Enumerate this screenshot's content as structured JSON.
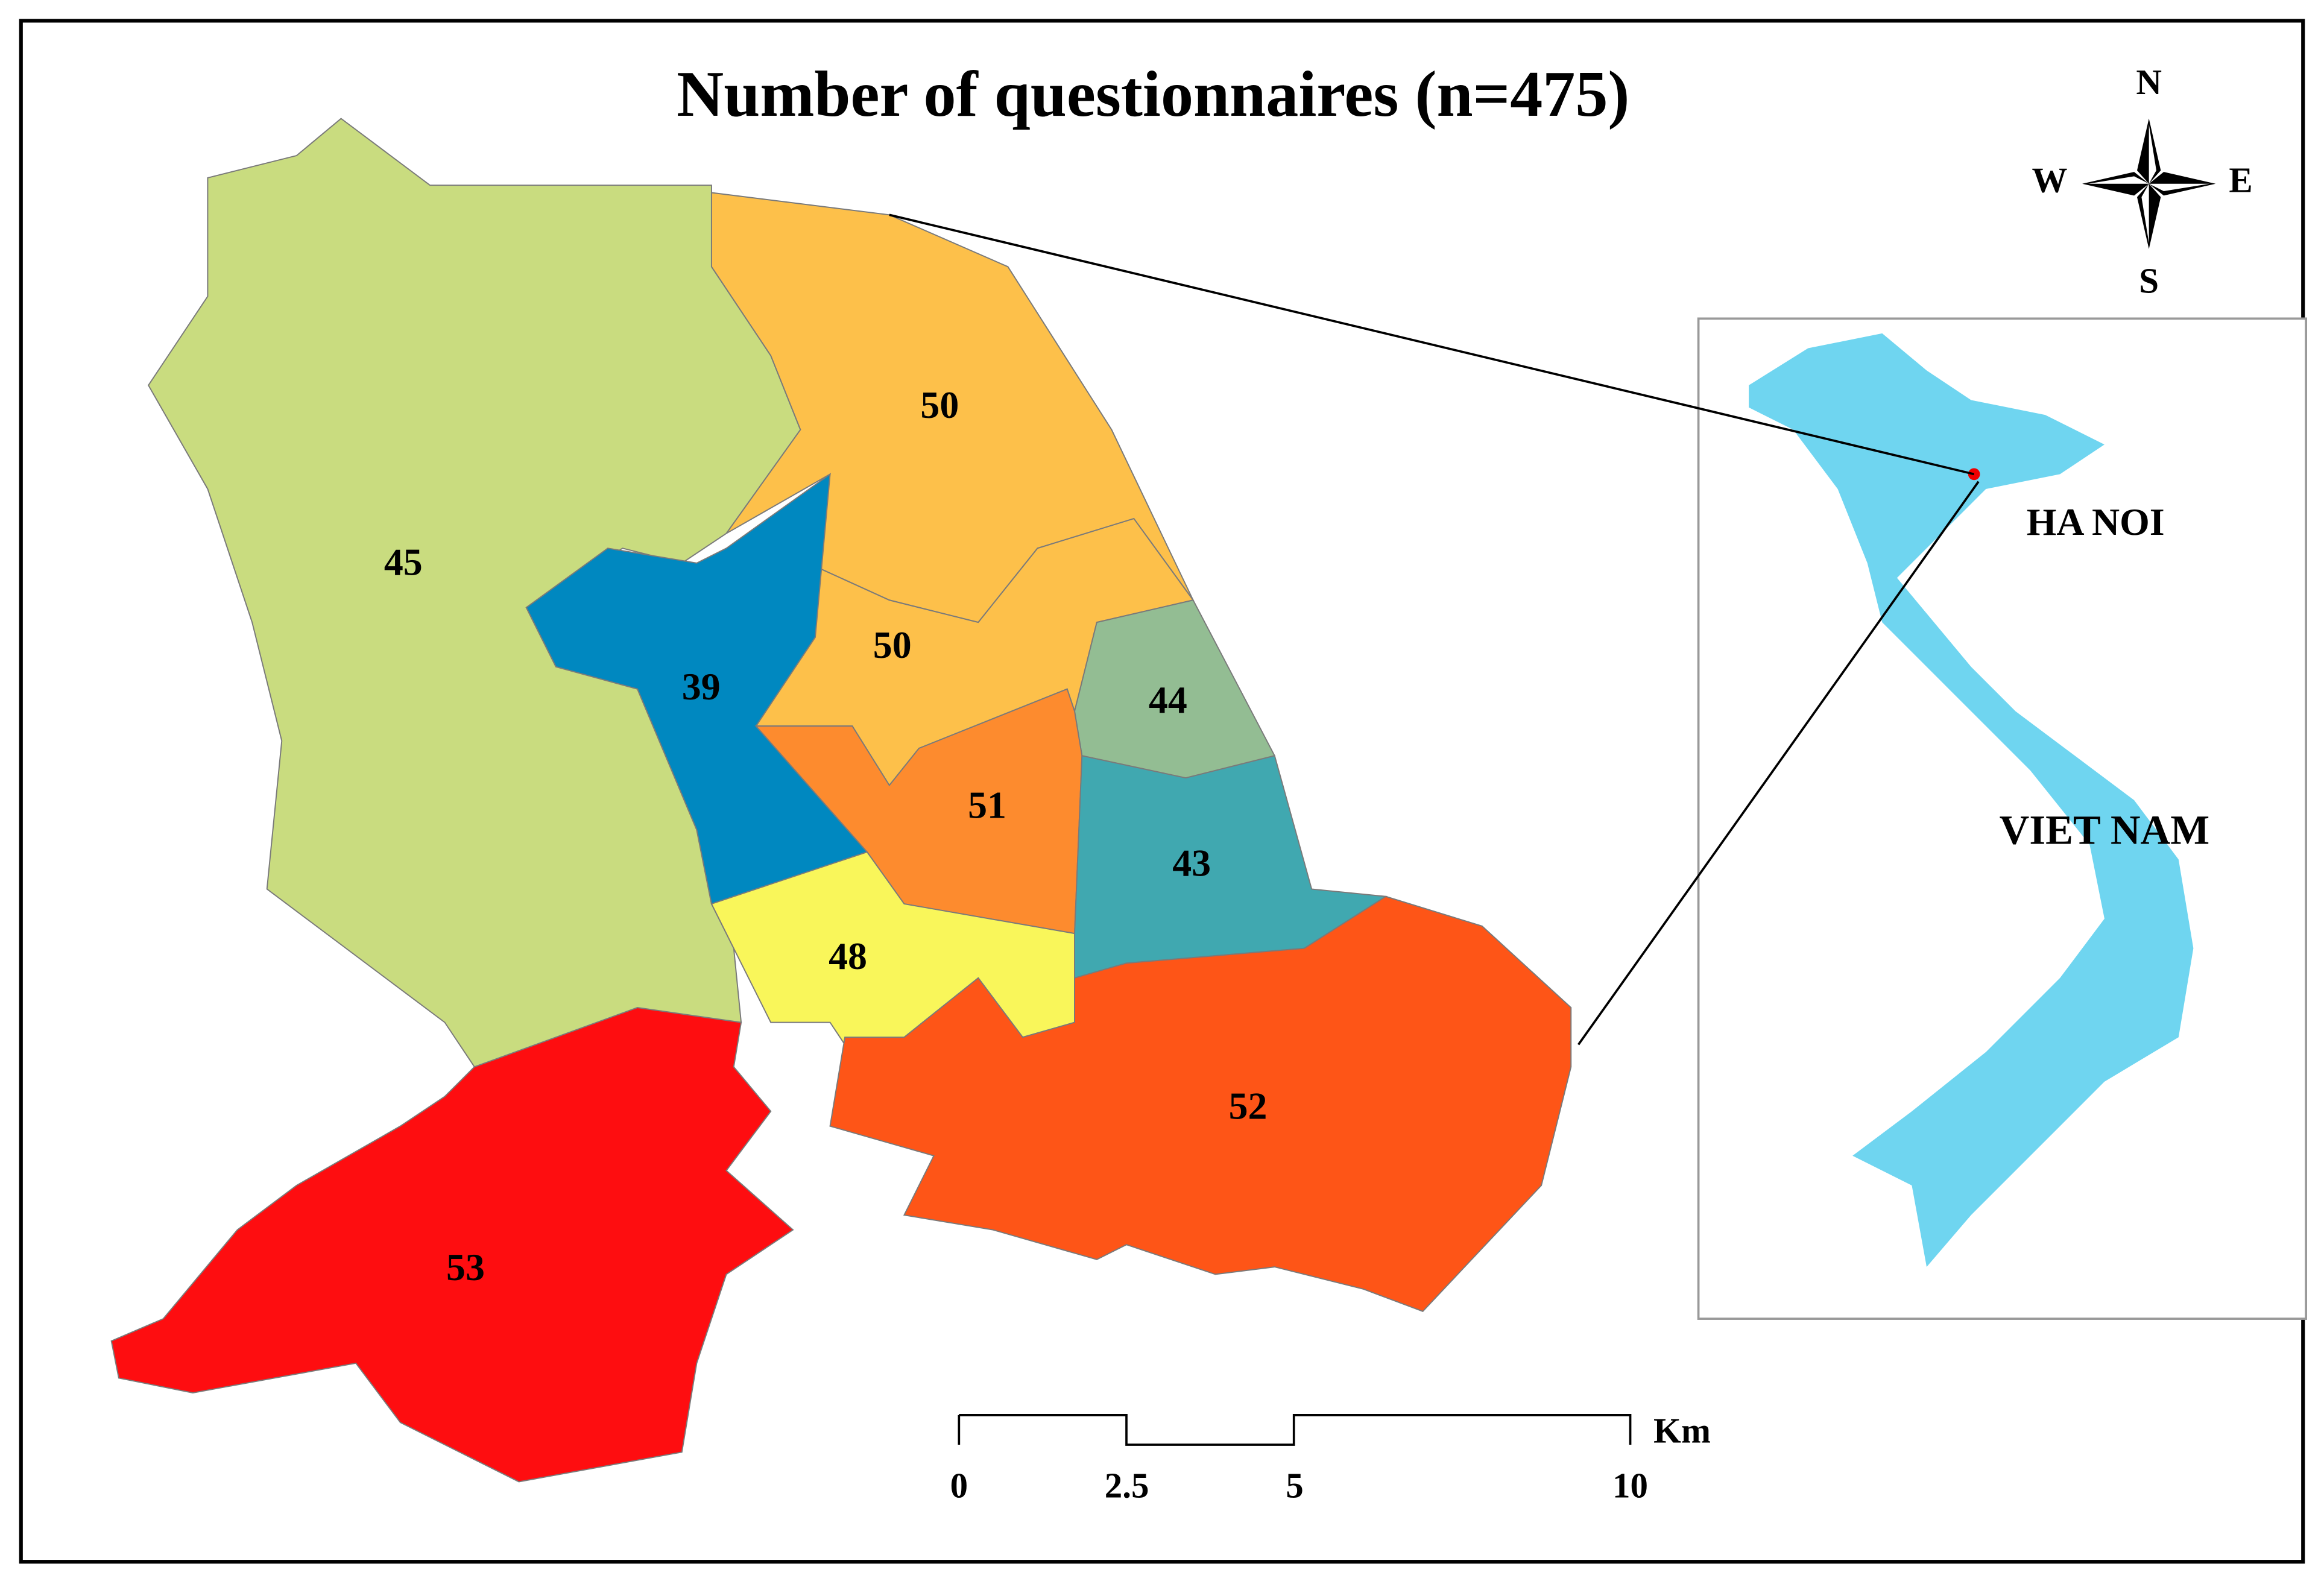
{
  "title": "Number of questionnaires (n=475)",
  "compass": {
    "north": "N",
    "south": "S",
    "east": "E",
    "west": "W"
  },
  "regions": [
    {
      "value": 45
    },
    {
      "value": 50
    },
    {
      "value": 50
    },
    {
      "value": 39
    },
    {
      "value": 44
    },
    {
      "value": 51
    },
    {
      "value": 43
    },
    {
      "value": 48
    },
    {
      "value": 52
    },
    {
      "value": 53
    }
  ],
  "scale_bar": {
    "ticks": [
      0,
      2.5,
      5,
      10
    ],
    "unit": "Km"
  },
  "inset": {
    "city": "HA NOI",
    "country": "VIET NAM"
  }
}
